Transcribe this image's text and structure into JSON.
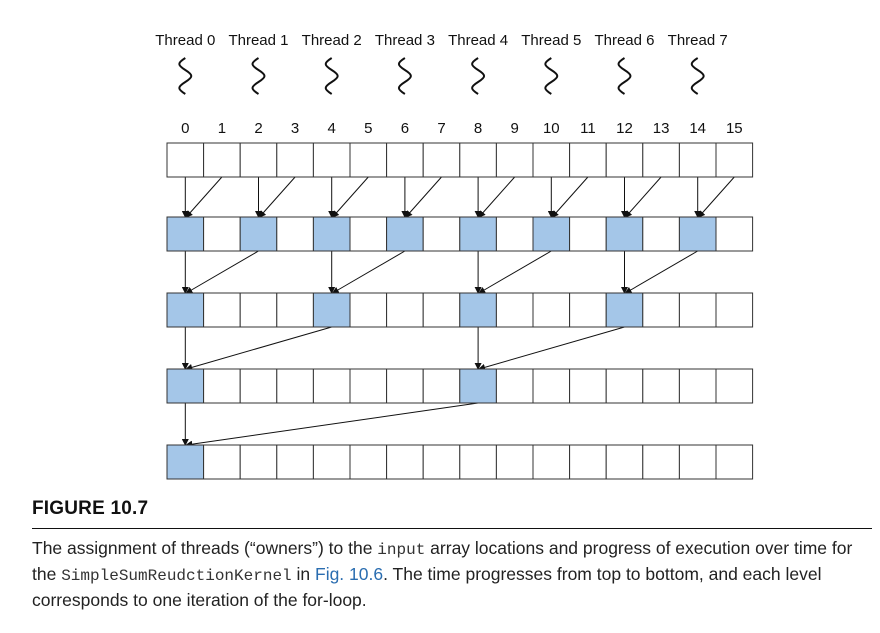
{
  "threads": [
    "Thread 0",
    "Thread 1",
    "Thread 2",
    "Thread 3",
    "Thread 4",
    "Thread 5",
    "Thread 6",
    "Thread 7"
  ],
  "indices": [
    "0",
    "1",
    "2",
    "3",
    "4",
    "5",
    "6",
    "7",
    "8",
    "9",
    "10",
    "11",
    "12",
    "13",
    "14",
    "15"
  ],
  "levels": [
    {
      "active": []
    },
    {
      "active": [
        0,
        2,
        4,
        6,
        8,
        10,
        12,
        14
      ]
    },
    {
      "active": [
        0,
        4,
        8,
        12
      ]
    },
    {
      "active": [
        0,
        8
      ]
    },
    {
      "active": [
        0
      ]
    }
  ],
  "colors": {
    "active": "#a4c6e8",
    "inactive": "#ffffff",
    "link": "#2a6db0"
  },
  "caption": {
    "figure_label": "FIGURE 10.7",
    "t1": "The assignment of threads (“owners”) to the ",
    "code1": "input",
    "t2": " array locations and progress of execution over time for the ",
    "code2": "SimpleSumReudctionKernel",
    "t3": " in ",
    "link": "Fig. 10.6",
    "t4": ". The time progresses from top to bottom, and each level corresponds to one iteration of the for-loop."
  }
}
